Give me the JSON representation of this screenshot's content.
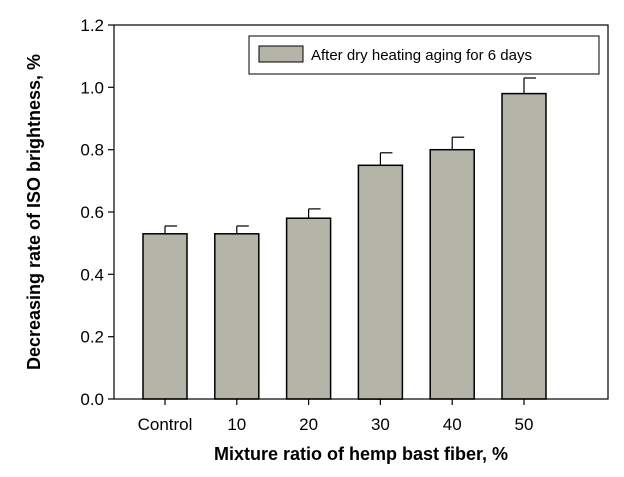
{
  "chart_data": {
    "type": "bar",
    "title": "",
    "xlabel": "Mixture ratio of hemp bast fiber, %",
    "ylabel": "Decreasing rate of ISO brightness, %",
    "categories": [
      "Control",
      "10",
      "20",
      "30",
      "40",
      "50"
    ],
    "series": [
      {
        "name": "After dry heating aging for 6 days",
        "values": [
          0.53,
          0.53,
          0.58,
          0.75,
          0.8,
          0.98
        ],
        "errors": [
          0.025,
          0.025,
          0.03,
          0.04,
          0.04,
          0.05
        ]
      }
    ],
    "ylim": [
      0.0,
      1.2
    ],
    "yticks": [
      "0.0",
      "0.2",
      "0.4",
      "0.6",
      "0.8",
      "1.0",
      "1.2"
    ],
    "ytick_values": [
      0.0,
      0.2,
      0.4,
      0.6,
      0.8,
      1.0,
      1.2
    ],
    "grid": false,
    "legend_position": "top-right",
    "colors": {
      "bar_fill": "#b4b4a8",
      "bar_stroke": "#000000",
      "axis": "#000000",
      "background": "#ffffff"
    }
  }
}
